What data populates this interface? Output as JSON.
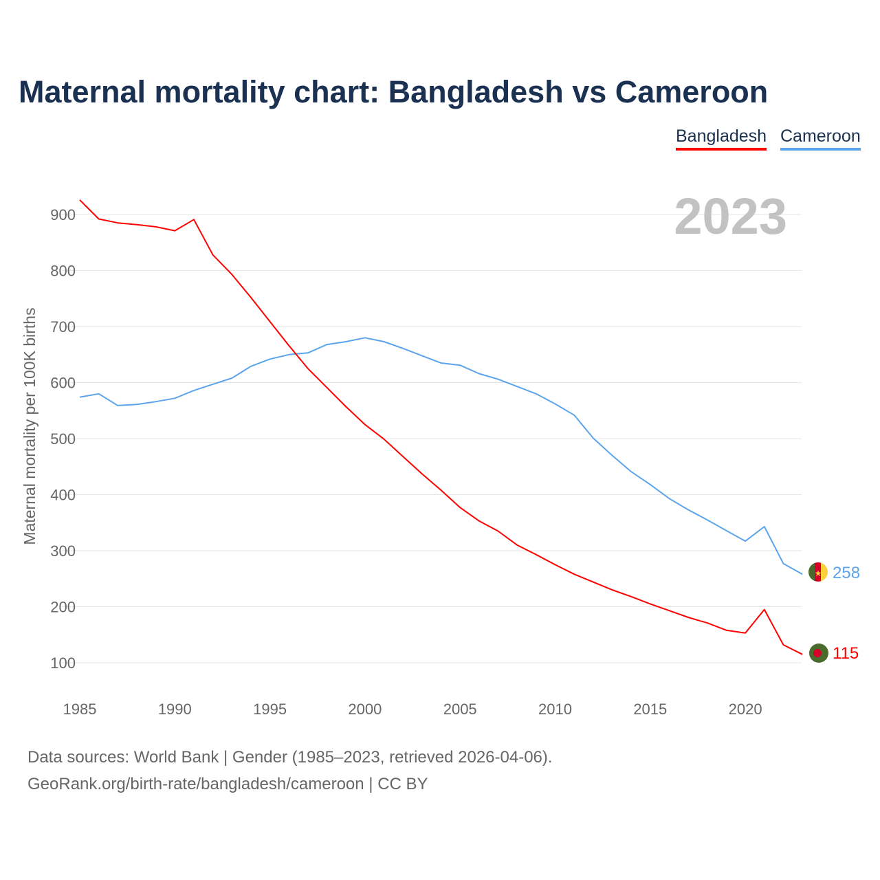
{
  "title": "Maternal mortality chart: Bangladesh vs Cameroon",
  "year_label": "2023",
  "footer": {
    "line1": "Data sources: World Bank | Gender (1985–2023, retrieved 2026-04-06).",
    "line2": "GeoRank.org/birth-rate/bangladesh/cameroon | CC BY"
  },
  "chart_data": {
    "type": "line",
    "title": "Maternal mortality chart: Bangladesh vs Cameroon",
    "xlabel": "",
    "ylabel": "Maternal mortality per 100K births",
    "xlim": [
      1985,
      2023
    ],
    "ylim": [
      50,
      930
    ],
    "grid": true,
    "legend_position": "top-right",
    "x_ticks": [
      1985,
      1990,
      1995,
      2000,
      2005,
      2010,
      2015,
      2020
    ],
    "y_ticks": [
      100,
      200,
      300,
      400,
      500,
      600,
      700,
      800,
      900
    ],
    "x": [
      1985,
      1986,
      1987,
      1988,
      1989,
      1990,
      1991,
      1992,
      1993,
      1994,
      1995,
      1996,
      1997,
      1998,
      1999,
      2000,
      2001,
      2002,
      2003,
      2004,
      2005,
      2006,
      2007,
      2008,
      2009,
      2010,
      2011,
      2012,
      2013,
      2014,
      2015,
      2016,
      2017,
      2018,
      2019,
      2020,
      2021,
      2022,
      2023
    ],
    "series": [
      {
        "name": "Bangladesh",
        "color": "#ff0000",
        "end_label": "115",
        "values": [
          926,
          892,
          885,
          882,
          878,
          871,
          891,
          828,
          793,
          752,
          709,
          666,
          625,
          591,
          557,
          525,
          499,
          468,
          437,
          408,
          377,
          353,
          335,
          310,
          293,
          275,
          258,
          244,
          230,
          218,
          205,
          193,
          181,
          171,
          158,
          153,
          195,
          132,
          115
        ]
      },
      {
        "name": "Cameroon",
        "color": "#5ba4ec",
        "end_label": "258",
        "values": [
          574,
          580,
          559,
          561,
          566,
          572,
          586,
          597,
          608,
          629,
          642,
          650,
          653,
          668,
          673,
          680,
          673,
          661,
          648,
          635,
          631,
          616,
          606,
          593,
          580,
          562,
          542,
          501,
          470,
          441,
          418,
          393,
          373,
          355,
          336,
          317,
          343,
          277,
          258
        ]
      }
    ]
  }
}
